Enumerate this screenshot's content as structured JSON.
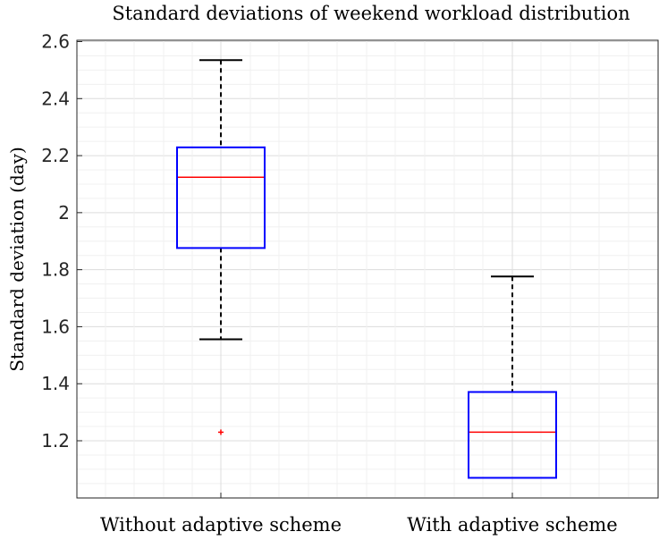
{
  "chart_data": {
    "type": "boxplot",
    "title": "Standard deviations of weekend workload distribution",
    "xlabel": "",
    "ylabel": "Standard deviation (day)",
    "ylim": [
      1.0,
      2.62
    ],
    "yticks": [
      1.2,
      1.4,
      1.6,
      1.8,
      2.0,
      2.2,
      2.4,
      2.6
    ],
    "yticklabels": [
      "1.2",
      "1.4",
      "1.6",
      "1.8",
      "2",
      "2.2",
      "2.4",
      "2.6"
    ],
    "grid": true,
    "categories": [
      "Without adaptive scheme",
      "With adaptive scheme"
    ],
    "boxes": [
      {
        "category": "Without adaptive scheme",
        "whisker_low": 1.556,
        "q1": 1.876,
        "median": 2.124,
        "q3": 2.229,
        "whisker_high": 2.535,
        "outliers": [
          1.23
        ]
      },
      {
        "category": "With adaptive scheme",
        "whisker_low": 1.07,
        "q1": 1.07,
        "median": 1.23,
        "q3": 1.371,
        "whisker_high": 1.776,
        "outliers": []
      }
    ],
    "colors": {
      "box": "#0000ff",
      "median": "#ff0000",
      "whisker": "#000000",
      "outlier": "#ff0000",
      "grid": "#e6e6e6",
      "axis": "#262626"
    }
  }
}
